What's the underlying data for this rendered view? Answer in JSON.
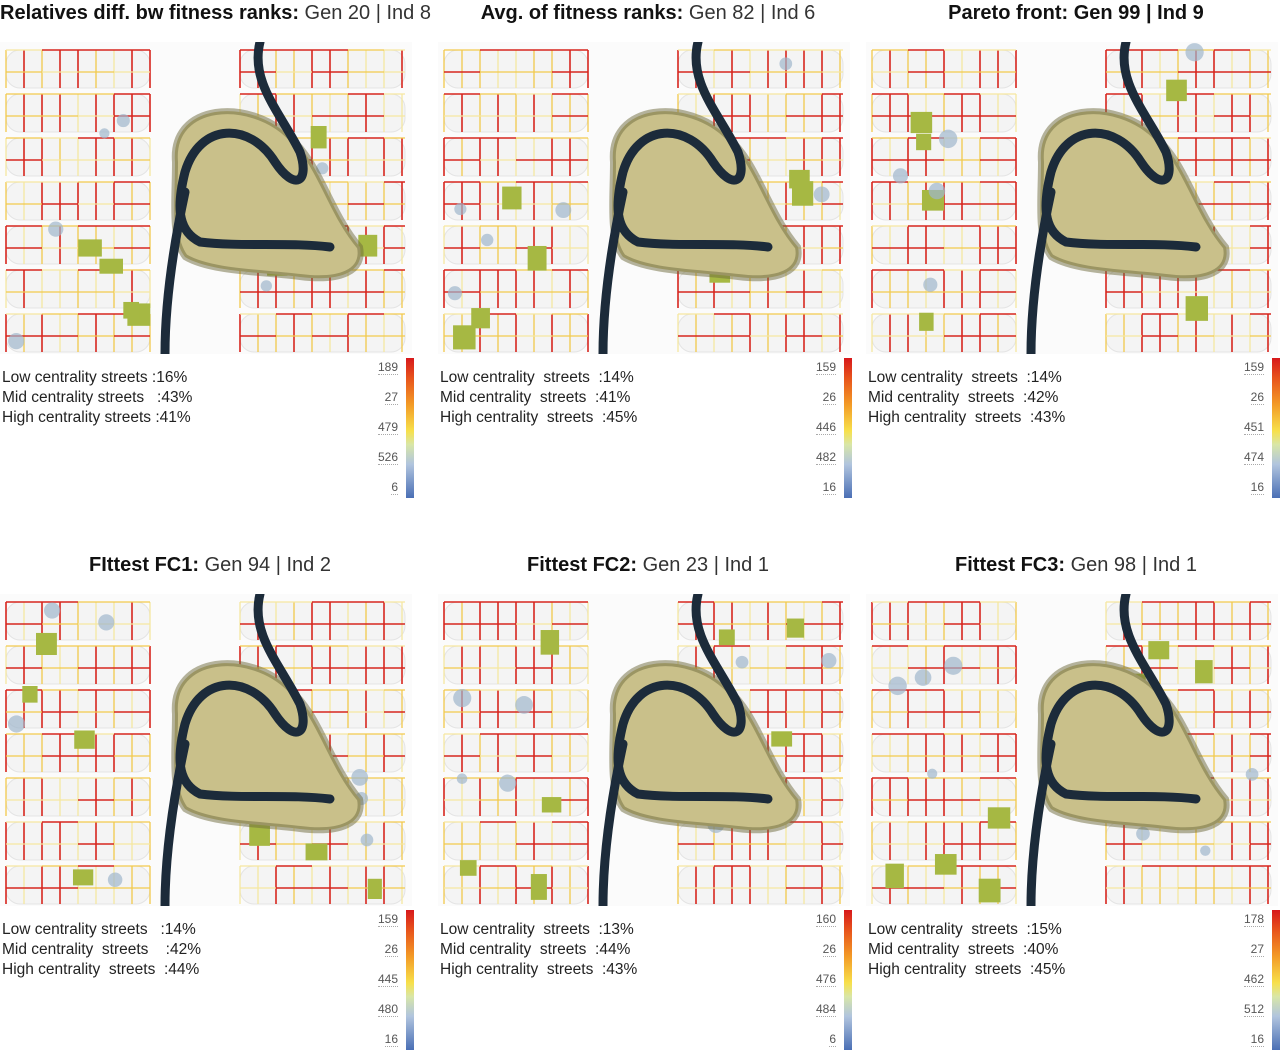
{
  "panels": [
    {
      "title_bold": "Relatives diff. bw fitness ranks:",
      "title_meta": " Gen 20 | Ind 8",
      "low": "Low centrality streets :16%",
      "mid": "Mid centrality streets   :43%",
      "high": "High centrality streets :41%",
      "legend": [
        "189",
        "27",
        "479",
        "526",
        "6"
      ]
    },
    {
      "title_bold": "Avg. of fitness ranks:",
      "title_meta": " Gen 82 | Ind 6",
      "low": "Low centrality  streets  :14%",
      "mid": "Mid centrality  streets  :41%",
      "high": "High centrality  streets  :45%",
      "legend": [
        "159",
        "26",
        "446",
        "482",
        "16"
      ]
    },
    {
      "title_bold": "Pareto front: Gen 99 | Ind 9",
      "title_meta": "",
      "low": "Low centrality  streets  :14%",
      "mid": "Mid centrality  streets  :42%",
      "high": "High centrality  streets  :43%",
      "legend": [
        "159",
        "26",
        "451",
        "474",
        "16"
      ]
    },
    {
      "title_bold": "FIttest FC1:",
      "title_meta": " Gen 94 | Ind 2",
      "low": "Low centrality streets   :14%",
      "mid": "Mid centrality  streets    :42%",
      "high": "High centrality  streets  :44%",
      "legend": [
        "159",
        "26",
        "445",
        "480",
        "16"
      ]
    },
    {
      "title_bold": "Fittest FC2:",
      "title_meta": " Gen 23 | Ind 1",
      "low": "Low centrality  streets  :13%",
      "mid": "Mid centrality  streets  :44%",
      "high": "High centrality  streets  :43%",
      "legend": [
        "160",
        "26",
        "476",
        "484",
        "6"
      ]
    },
    {
      "title_bold": "Fittest FC3:",
      "title_meta": " Gen 98 | Ind 1",
      "low": "Low centrality  streets  :15%",
      "mid": "Mid centrality  streets  :40%",
      "high": "High centrality  streets  :45%",
      "legend": [
        "178",
        "27",
        "462",
        "512",
        "16"
      ]
    }
  ],
  "colors": {
    "high_street": "#d7261e",
    "mid_street": "#f2c94c",
    "low_street": "#f5e7a0",
    "park": "#a6b843",
    "river": "#1c2b3a",
    "island": "#c9c08a",
    "bank": "#6e6a3c",
    "block": "#f4f4f4",
    "plaza": "#9fb6cc"
  }
}
